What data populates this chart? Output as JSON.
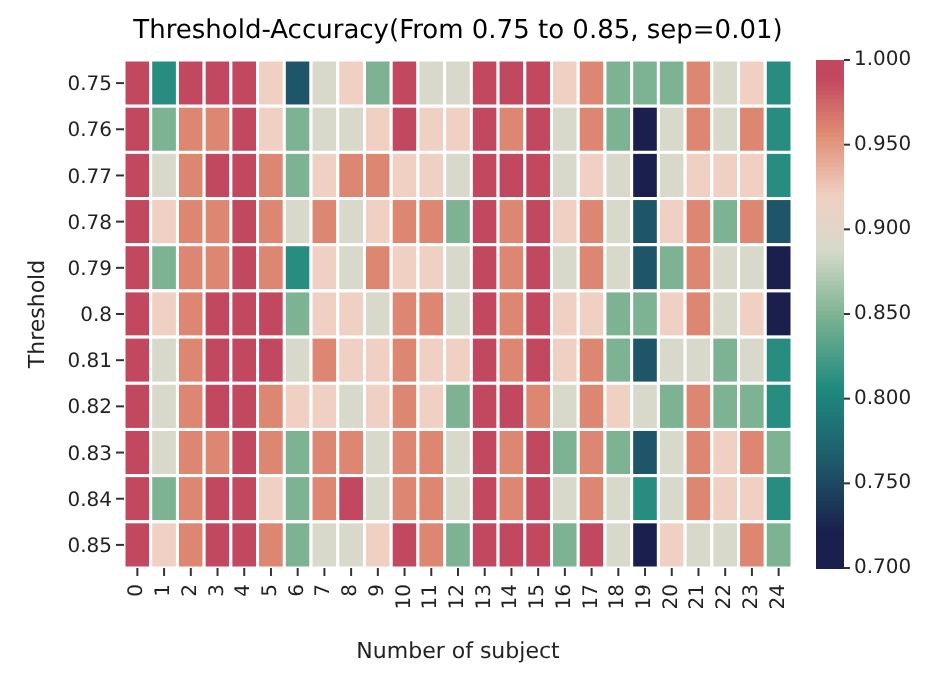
{
  "chart_data": {
    "type": "heatmap",
    "title": "Threshold-Accuracy(From 0.75 to 0.85, sep=0.01)",
    "xlabel": "Number of subject",
    "ylabel": "Threshold",
    "categories": [
      "0",
      "1",
      "2",
      "3",
      "4",
      "5",
      "6",
      "7",
      "8",
      "9",
      "10",
      "11",
      "12",
      "13",
      "14",
      "15",
      "16",
      "17",
      "18",
      "19",
      "20",
      "21",
      "22",
      "23",
      "24"
    ],
    "y_categories": [
      "0.75",
      "0.76",
      "0.77",
      "0.78",
      "0.79",
      "0.8",
      "0.81",
      "0.82",
      "0.83",
      "0.84",
      "0.85"
    ],
    "cells": [
      [
        0.99,
        0.81,
        0.99,
        0.99,
        0.99,
        0.92,
        0.76,
        0.89,
        0.92,
        0.85,
        0.99,
        0.89,
        0.89,
        0.99,
        0.99,
        0.99,
        0.92,
        0.96,
        0.85,
        0.85,
        0.85,
        0.96,
        0.89,
        0.92,
        0.81
      ],
      [
        0.99,
        0.85,
        0.96,
        0.96,
        0.99,
        0.92,
        0.85,
        0.89,
        0.89,
        0.92,
        0.99,
        0.92,
        0.92,
        0.99,
        0.96,
        0.99,
        0.89,
        0.96,
        0.85,
        0.72,
        0.89,
        0.96,
        0.89,
        0.96,
        0.81
      ],
      [
        0.99,
        0.89,
        0.96,
        0.99,
        0.99,
        0.96,
        0.85,
        0.92,
        0.96,
        0.96,
        0.92,
        0.92,
        0.89,
        0.99,
        0.99,
        0.99,
        0.89,
        0.92,
        0.89,
        0.72,
        0.89,
        0.92,
        0.92,
        0.92,
        0.81
      ],
      [
        0.99,
        0.92,
        0.96,
        0.96,
        0.99,
        0.96,
        0.89,
        0.96,
        0.89,
        0.92,
        0.96,
        0.96,
        0.85,
        0.99,
        0.96,
        0.99,
        0.92,
        0.96,
        0.89,
        0.76,
        0.92,
        0.96,
        0.85,
        0.96,
        0.76
      ],
      [
        0.99,
        0.85,
        0.96,
        0.96,
        0.99,
        0.96,
        0.81,
        0.92,
        0.89,
        0.96,
        0.92,
        0.92,
        0.89,
        0.99,
        0.96,
        0.99,
        0.89,
        0.96,
        0.89,
        0.76,
        0.85,
        0.96,
        0.89,
        0.89,
        0.72
      ],
      [
        0.99,
        0.92,
        0.96,
        0.99,
        0.99,
        0.99,
        0.85,
        0.92,
        0.92,
        0.89,
        0.96,
        0.96,
        0.89,
        0.99,
        0.96,
        0.99,
        0.92,
        0.92,
        0.85,
        0.85,
        0.92,
        0.96,
        0.89,
        0.92,
        0.72
      ],
      [
        0.99,
        0.89,
        0.96,
        0.99,
        0.99,
        0.99,
        0.89,
        0.96,
        0.92,
        0.92,
        0.96,
        0.92,
        0.92,
        0.99,
        0.96,
        0.99,
        0.92,
        0.96,
        0.85,
        0.76,
        0.89,
        0.89,
        0.85,
        0.89,
        0.81
      ],
      [
        0.99,
        0.89,
        0.96,
        0.99,
        0.99,
        0.96,
        0.92,
        0.92,
        0.89,
        0.92,
        0.96,
        0.92,
        0.85,
        0.99,
        0.99,
        0.96,
        0.89,
        0.96,
        0.92,
        0.89,
        0.85,
        0.96,
        0.85,
        0.85,
        0.81
      ],
      [
        0.99,
        0.89,
        0.96,
        0.96,
        0.99,
        0.96,
        0.85,
        0.96,
        0.96,
        0.89,
        0.96,
        0.96,
        0.89,
        0.99,
        0.96,
        0.99,
        0.85,
        0.96,
        0.85,
        0.76,
        0.89,
        0.96,
        0.92,
        0.96,
        0.85
      ],
      [
        0.99,
        0.85,
        0.96,
        0.99,
        0.99,
        0.92,
        0.85,
        0.96,
        0.99,
        0.89,
        0.96,
        0.96,
        0.89,
        0.99,
        0.96,
        0.99,
        0.89,
        0.96,
        0.89,
        0.81,
        0.89,
        0.96,
        0.92,
        0.92,
        0.81
      ],
      [
        0.99,
        0.92,
        0.96,
        0.99,
        0.99,
        0.96,
        0.85,
        0.89,
        0.89,
        0.92,
        0.99,
        0.96,
        0.85,
        0.99,
        0.99,
        0.99,
        0.85,
        0.99,
        0.89,
        0.72,
        0.92,
        0.89,
        0.89,
        0.96,
        0.85
      ]
    ],
    "clim": [
      0.7,
      1.0
    ],
    "cticks": [
      {
        "value": 0.7,
        "label": "0.700"
      },
      {
        "value": 0.75,
        "label": "0.750"
      },
      {
        "value": 0.8,
        "label": "0.800"
      },
      {
        "value": 0.85,
        "label": "0.850"
      },
      {
        "value": 0.9,
        "label": "0.900"
      },
      {
        "value": 0.95,
        "label": "0.950"
      },
      {
        "value": 1.0,
        "label": "1.000"
      }
    ]
  }
}
